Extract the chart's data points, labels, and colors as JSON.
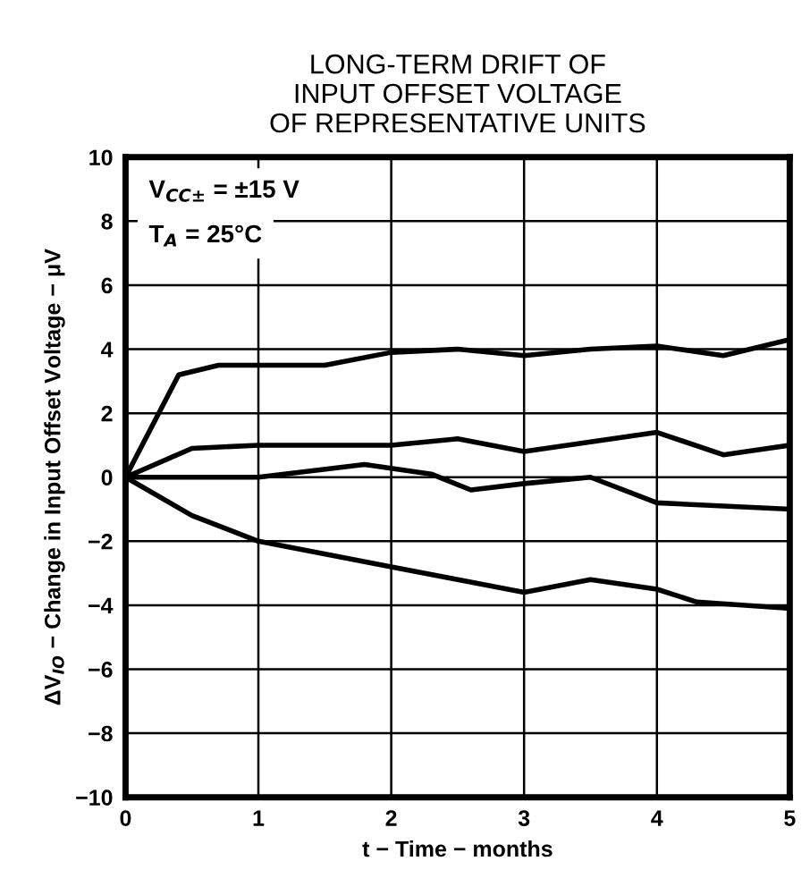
{
  "chart_data": {
    "type": "line",
    "title": "LONG-TERM DRIFT OF\nINPUT OFFSET VOLTAGE\nOF REPRESENTATIVE UNITS",
    "xlabel": "t − Time − months",
    "ylabel": "ΔV$_{IO}$ − Change in Input Offset Voltage − μV",
    "annotations": [
      "V$_{CC±}$ = ±15 V",
      "T$_{A}$ = 25°C"
    ],
    "series": [
      {
        "color": "#000000",
        "x": [
          0,
          0.4,
          0.7,
          1.5,
          2,
          2.5,
          3,
          3.5,
          4,
          4.5,
          5
        ],
        "values": [
          0,
          3.2,
          3.5,
          3.5,
          3.9,
          4.0,
          3.8,
          4.0,
          4.1,
          3.8,
          4.3
        ]
      },
      {
        "color": "#000000",
        "x": [
          0,
          0.5,
          1,
          2,
          2.5,
          3,
          3.5,
          4,
          4.5,
          5
        ],
        "values": [
          0,
          0.9,
          1.0,
          1.0,
          1.2,
          0.8,
          1.1,
          1.4,
          0.7,
          1.0
        ]
      },
      {
        "color": "#000000",
        "x": [
          0,
          1,
          1.8,
          2.3,
          2.6,
          3,
          3.5,
          4,
          5
        ],
        "values": [
          0,
          0.0,
          0.4,
          0.1,
          -0.4,
          -0.2,
          0.0,
          -0.8,
          -1.0
        ]
      },
      {
        "color": "#000000",
        "x": [
          0,
          0.5,
          1,
          2,
          2.5,
          3,
          3.5,
          4,
          4.3,
          5
        ],
        "values": [
          0,
          -1.2,
          -2.0,
          -2.8,
          -3.2,
          -3.6,
          -3.2,
          -3.5,
          -3.9,
          -4.1
        ]
      }
    ],
    "xlim": [
      0,
      5
    ],
    "xticks": [
      0,
      1,
      2,
      3,
      4,
      5
    ],
    "ylim": [
      -10,
      10
    ],
    "yticks": [
      {
        "value": -10,
        "label": "−10"
      },
      {
        "value": -8,
        "label": "−8"
      },
      {
        "value": -6,
        "label": "−6"
      },
      {
        "value": -4,
        "label": "−4"
      },
      {
        "value": -2,
        "label": "−2"
      },
      0,
      2,
      4,
      6,
      8,
      10
    ],
    "grid": true,
    "marker": "none",
    "line_style": "solid"
  }
}
